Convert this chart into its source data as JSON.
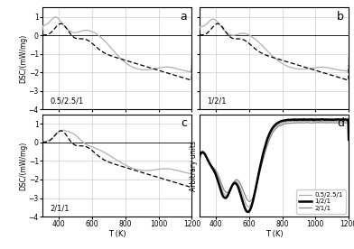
{
  "title_a": "a",
  "title_b": "b",
  "title_c": "c",
  "title_d": "d",
  "label_a": "0.5/2.5/1",
  "label_b": "1/2/1",
  "label_c": "2/1/1",
  "ylabel_dsc": "DSC/(mW/mg)",
  "ylabel_d": "Arbitrary units",
  "xlabel": "T (K)",
  "xlim_dsc": [
    300,
    1200
  ],
  "xlim_d": [
    300,
    1200
  ],
  "ylim_dsc": [
    -4,
    1.5
  ],
  "yticks_dsc": [
    -4,
    -3,
    -2,
    -1,
    0,
    1
  ],
  "xticks_dsc": [
    400,
    600,
    800,
    1000,
    1200
  ],
  "xticks_d": [
    400,
    600,
    800,
    1000,
    1200
  ],
  "line_color_solid": "#b0b0b0",
  "line_color_dashed": "#000000",
  "line_color_d_thin": "#aaaaaa",
  "line_color_d_bold": "#000000",
  "line_color_d_med": "#888888",
  "legend_d": [
    "0.5/2.5/1",
    "1/2/1",
    "2/1/1"
  ]
}
